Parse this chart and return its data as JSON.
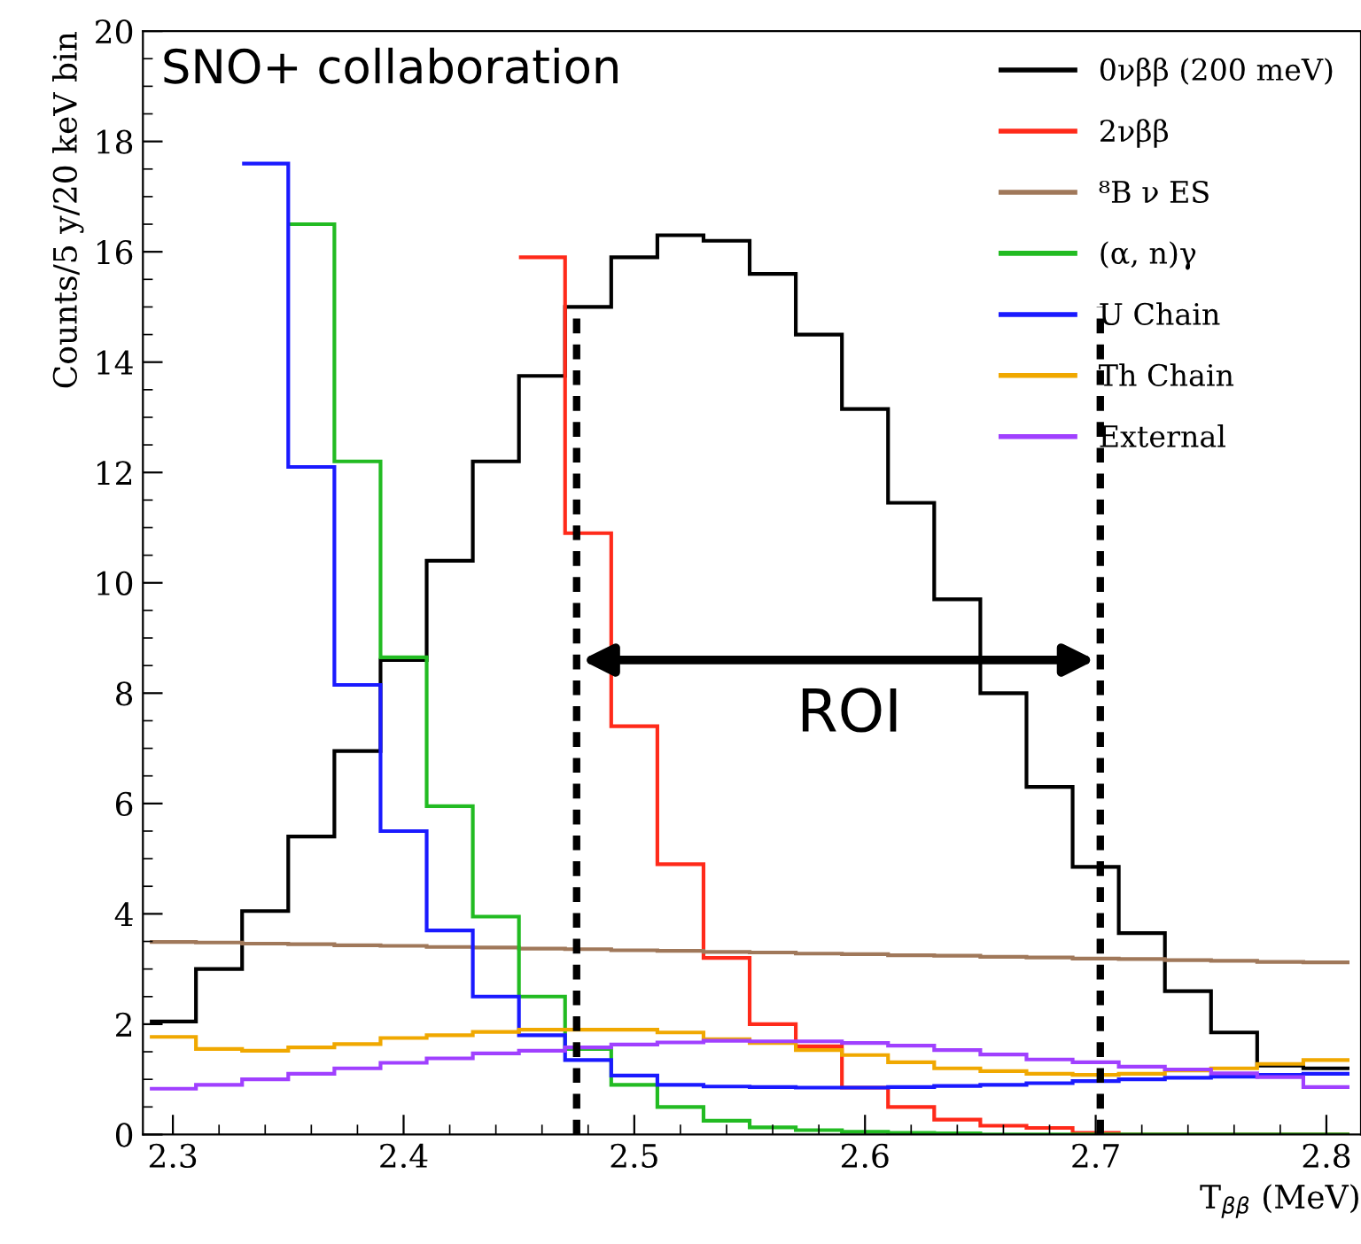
{
  "chart_data": {
    "type": "histogram",
    "xlabel": "T$_{ββ}$ (MeV)",
    "ylabel": "Counts/5 y/20 keV bin",
    "bins": [
      2.29,
      2.31,
      2.33,
      2.35,
      2.37,
      2.39,
      2.41,
      2.43,
      2.45,
      2.47,
      2.49,
      2.51,
      2.53,
      2.55,
      2.57,
      2.59,
      2.61,
      2.63,
      2.65,
      2.67,
      2.69,
      2.71,
      2.73,
      2.75,
      2.77,
      2.79,
      2.81
    ],
    "series": [
      {
        "name": "0νββ (200 meV)",
        "color": "#000000",
        "values": [
          2.05,
          3.0,
          4.05,
          5.4,
          6.95,
          8.6,
          10.4,
          12.2,
          13.75,
          15.0,
          15.9,
          16.3,
          16.2,
          15.6,
          14.5,
          13.15,
          11.45,
          9.7,
          8.0,
          6.3,
          4.85,
          3.65,
          2.6,
          1.85,
          1.25,
          1.2
        ]
      },
      {
        "name": "2νββ",
        "color": "#ff2a1a",
        "bins": [
          2.45,
          2.47,
          2.49,
          2.51,
          2.53,
          2.55,
          2.57,
          2.59,
          2.61,
          2.63,
          2.65,
          2.67,
          2.69,
          2.71,
          2.73,
          2.75,
          2.77,
          2.79,
          2.81
        ],
        "values": [
          15.9,
          10.9,
          7.4,
          4.9,
          3.2,
          2.0,
          1.6,
          0.85,
          0.5,
          0.27,
          0.16,
          0.12,
          0.03,
          0.0,
          0.0,
          0.0,
          0.0,
          0.0
        ]
      },
      {
        "name": "⁸B ν ES",
        "color": "#a0785a",
        "values": [
          3.49,
          3.48,
          3.46,
          3.45,
          3.43,
          3.42,
          3.4,
          3.39,
          3.37,
          3.36,
          3.34,
          3.33,
          3.31,
          3.3,
          3.28,
          3.27,
          3.25,
          3.24,
          3.22,
          3.21,
          3.19,
          3.18,
          3.16,
          3.15,
          3.13,
          3.12
        ]
      },
      {
        "name": "(α, n)γ",
        "color": "#22bb22",
        "bins": [
          2.35,
          2.37,
          2.39,
          2.41,
          2.43,
          2.45,
          2.47,
          2.49,
          2.51,
          2.53,
          2.55,
          2.57,
          2.59,
          2.61,
          2.63,
          2.65,
          2.67,
          2.69,
          2.71,
          2.73,
          2.75,
          2.77,
          2.79,
          2.81
        ],
        "values": [
          16.5,
          12.2,
          8.65,
          5.95,
          3.95,
          2.5,
          1.55,
          0.9,
          0.5,
          0.25,
          0.13,
          0.08,
          0.05,
          0.03,
          0.02,
          0.0,
          0.0,
          0.0,
          0.0,
          0.0,
          0.0,
          0.0,
          0.0
        ]
      },
      {
        "name": "U Chain",
        "color": "#1a1aff",
        "bins": [
          2.33,
          2.35,
          2.37,
          2.39,
          2.41,
          2.43,
          2.45,
          2.47,
          2.49,
          2.51,
          2.53,
          2.55,
          2.57,
          2.59,
          2.61,
          2.63,
          2.65,
          2.67,
          2.69,
          2.71,
          2.73,
          2.75,
          2.77,
          2.79,
          2.81
        ],
        "values": [
          17.6,
          12.1,
          8.15,
          5.5,
          3.7,
          2.5,
          1.8,
          1.35,
          1.07,
          0.9,
          0.87,
          0.86,
          0.85,
          0.85,
          0.86,
          0.88,
          0.9,
          0.93,
          0.97,
          1.0,
          1.03,
          1.05,
          1.08,
          1.1
        ]
      },
      {
        "name": "Th Chain",
        "color": "#f0a800",
        "values": [
          1.77,
          1.55,
          1.52,
          1.58,
          1.64,
          1.75,
          1.8,
          1.86,
          1.9,
          1.9,
          1.9,
          1.85,
          1.73,
          1.66,
          1.53,
          1.44,
          1.31,
          1.2,
          1.15,
          1.1,
          1.08,
          1.1,
          1.16,
          1.2,
          1.28,
          1.35
        ]
      },
      {
        "name": "External",
        "color": "#a040ff",
        "values": [
          0.83,
          0.9,
          1.0,
          1.1,
          1.2,
          1.3,
          1.38,
          1.47,
          1.52,
          1.58,
          1.63,
          1.67,
          1.7,
          1.69,
          1.69,
          1.66,
          1.61,
          1.53,
          1.45,
          1.36,
          1.31,
          1.23,
          1.18,
          1.11,
          1.04,
          0.86
        ]
      }
    ],
    "ref_lines": [
      {
        "axis": "x",
        "value": 2.475,
        "color": "#000000",
        "line_style": "dashed"
      },
      {
        "axis": "x",
        "value": 2.702,
        "color": "#000000",
        "line_style": "dashed"
      }
    ],
    "annotations": [
      "SNO+ collaboration",
      "ROI"
    ],
    "xlim": [
      2.287,
      2.815
    ],
    "ylim": [
      0,
      20
    ],
    "xticks": [
      2.3,
      2.4,
      2.5,
      2.6,
      2.7,
      2.8
    ],
    "yticks": [
      0,
      2,
      4,
      6,
      8,
      10,
      12,
      14,
      16,
      18,
      20
    ],
    "legend": "top right",
    "grid": false
  }
}
